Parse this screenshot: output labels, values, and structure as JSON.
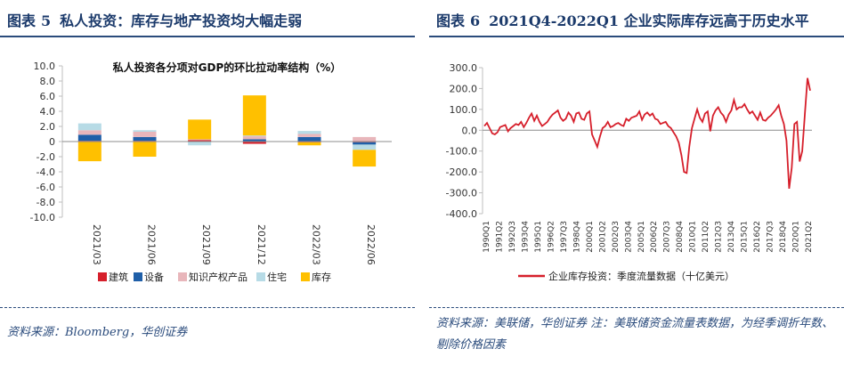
{
  "left_panel": {
    "heading_label": "图表",
    "heading_number": "5",
    "heading_title": "私人投资：库存与地产投资均大幅走弱",
    "source": "资料来源：Bloomberg，华创证券"
  },
  "right_panel": {
    "heading_label": "图表",
    "heading_number": "6",
    "heading_title": "2021Q4-2022Q1 企业实际库存远高于历史水平",
    "source": "资料来源：美联储，华创证券   注：美联储资金流量表数据，为经季调折年数、剔除价格因素"
  },
  "chart_data": [
    {
      "type": "bar",
      "stacked": true,
      "title": "私人投资各分项对GDP的环比拉动率结构（%）",
      "categories": [
        "2021/03",
        "2021/06",
        "2021/09",
        "2021/12",
        "2022/03",
        "2022/06"
      ],
      "ylim": [
        -10,
        10
      ],
      "yticks": [
        "10.0",
        "8.0",
        "6.0",
        "4.0",
        "2.0",
        "0",
        "-2.0",
        "-4.0",
        "-6.0",
        "-8.0",
        "-10.0"
      ],
      "legend_position": "bottom",
      "series": [
        {
          "name": "建筑",
          "color": "#d61f2b",
          "values": [
            0.1,
            0.1,
            0.2,
            -0.3,
            -0.1,
            -0.1
          ]
        },
        {
          "name": "设备",
          "color": "#1f5fa8",
          "values": [
            0.8,
            0.5,
            0.0,
            0.3,
            0.6,
            -0.3
          ]
        },
        {
          "name": "知识产权产品",
          "color": "#e8b6bb",
          "values": [
            0.6,
            0.7,
            0.1,
            0.4,
            0.4,
            0.6
          ]
        },
        {
          "name": "住宅",
          "color": "#b7dbe6",
          "values": [
            0.9,
            0.2,
            -0.5,
            0.1,
            0.4,
            -0.7
          ]
        },
        {
          "name": "库存",
          "color": "#ffc000",
          "values": [
            -2.6,
            -2.0,
            2.6,
            5.3,
            -0.4,
            -2.2
          ]
        }
      ]
    },
    {
      "type": "line",
      "ylim": [
        -400,
        300
      ],
      "yticks": [
        "300.0",
        "200.0",
        "100.0",
        "0.0",
        "-100.0",
        "-200.0",
        "-300.0",
        "-400.0"
      ],
      "xticks": [
        "1990Q1",
        "1991Q2",
        "1992Q3",
        "1993Q4",
        "1995Q1",
        "1996Q2",
        "1997Q3",
        "1998Q4",
        "2000Q1",
        "2001Q2",
        "2002Q3",
        "2003Q4",
        "2005Q1",
        "2006Q2",
        "2007Q3",
        "2008Q4",
        "2010Q1",
        "2011Q2",
        "2012Q3",
        "2013Q4",
        "2015Q1",
        "2016Q2",
        "2017Q3",
        "2018Q4",
        "2020Q1",
        "2021Q2"
      ],
      "legend_position": "bottom",
      "series": [
        {
          "name": "企业库存投资：季度流量数据（十亿美元）",
          "color": "#d61f2b",
          "values": [
            20,
            35,
            10,
            -15,
            -20,
            -10,
            15,
            20,
            25,
            -5,
            10,
            20,
            30,
            25,
            40,
            15,
            35,
            60,
            80,
            45,
            70,
            40,
            20,
            30,
            40,
            60,
            75,
            85,
            95,
            60,
            45,
            55,
            85,
            70,
            40,
            80,
            85,
            55,
            50,
            80,
            90,
            -20,
            -50,
            -80,
            -30,
            10,
            20,
            40,
            15,
            20,
            30,
            35,
            25,
            20,
            55,
            45,
            60,
            65,
            70,
            90,
            50,
            75,
            85,
            70,
            80,
            55,
            50,
            30,
            35,
            40,
            20,
            10,
            -10,
            -30,
            -60,
            -120,
            -200,
            -205,
            -80,
            10,
            55,
            100,
            60,
            40,
            80,
            90,
            -5,
            70,
            95,
            110,
            85,
            70,
            40,
            75,
            95,
            145,
            100,
            110,
            110,
            125,
            100,
            80,
            90,
            70,
            50,
            85,
            50,
            45,
            60,
            70,
            85,
            100,
            120,
            70,
            30,
            -50,
            -280,
            -180,
            30,
            40,
            -150,
            -100,
            80,
            250,
            190
          ]
        }
      ]
    }
  ]
}
